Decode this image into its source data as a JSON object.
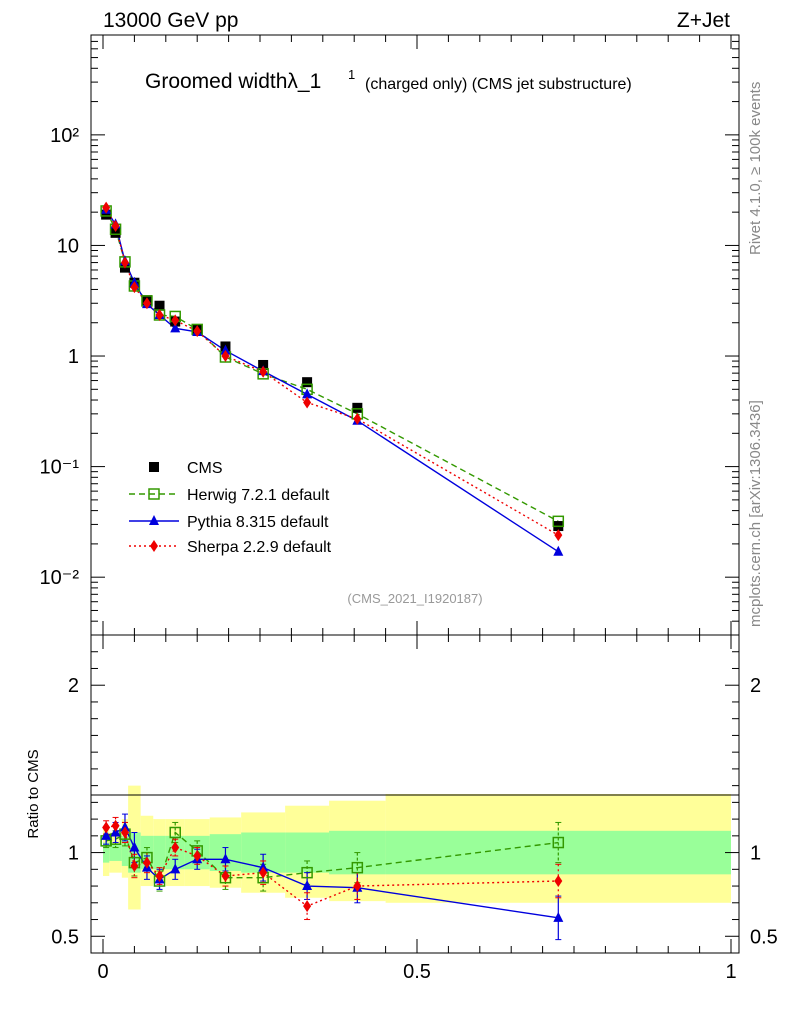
{
  "header": {
    "left": "13000 GeV pp",
    "right": "Z+Jet"
  },
  "side_labels": {
    "rivet": "Rivet 4.1.0, ≥ 100k events",
    "mcplots": "mcplots.cern.ch [arXiv:1306.3436]"
  },
  "colors": {
    "cms": "#000000",
    "herwig": "#339900",
    "pythia": "#0000dd",
    "sherpa": "#ee0000",
    "band_yellow": "#ffff99",
    "band_green": "#99ff99"
  },
  "chart_data": [
    {
      "type": "scatter",
      "title_main": "Groomed widthλ_1",
      "title_sup": "1",
      "title_sub": "(charged only) (CMS jet substructure)",
      "analysis": "(CMS_2021_I1920187)",
      "yscale": "log",
      "xlim": [
        0,
        1
      ],
      "ylim": [
        0.003,
        800
      ],
      "y_tick_labels": [
        "10⁻²",
        "10⁻¹",
        "1",
        "10",
        "10²"
      ],
      "legend_position": "middle-left",
      "x": [
        0.005,
        0.02,
        0.035,
        0.05,
        0.07,
        0.09,
        0.115,
        0.15,
        0.195,
        0.255,
        0.325,
        0.405,
        0.725
      ],
      "series": [
        {
          "name": "CMS",
          "key": "cms",
          "marker": "square",
          "values": [
            19,
            13,
            6.3,
            4.6,
            3.2,
            2.85,
            2.05,
            1.72,
            1.22,
            0.83,
            0.58,
            0.34,
            0.029
          ]
        },
        {
          "name": "Herwig 7.2.1 default",
          "key": "herwig",
          "marker": "open-square",
          "line": "dashed",
          "values": [
            20.5,
            14,
            7.1,
            4.3,
            3.15,
            2.35,
            2.28,
            1.74,
            0.98,
            0.69,
            0.5,
            0.3,
            0.032
          ]
        },
        {
          "name": "Pythia 8.315 default",
          "key": "pythia",
          "marker": "triangle",
          "line": "solid",
          "values": [
            21,
            15.5,
            7.2,
            4.6,
            2.95,
            2.35,
            1.78,
            1.65,
            1.12,
            0.73,
            0.45,
            0.26,
            0.017
          ]
        },
        {
          "name": "Sherpa 2.2.9 default",
          "key": "sherpa",
          "marker": "diamond",
          "line": "dotted",
          "values": [
            22,
            15,
            7.0,
            4.2,
            3.0,
            2.35,
            2.1,
            1.68,
            1.0,
            0.72,
            0.38,
            0.27,
            0.024
          ]
        }
      ]
    },
    {
      "type": "line",
      "ylabel": "Ratio to CMS",
      "xlim": [
        0,
        1
      ],
      "ylim": [
        0.4,
        2.3
      ],
      "x_tick_labels": [
        "0",
        "0.5",
        "1"
      ],
      "y_tick_labels": [
        "0.5",
        "1",
        "2"
      ],
      "bins": [
        0,
        0.01,
        0.03,
        0.04,
        0.06,
        0.08,
        0.1,
        0.13,
        0.17,
        0.22,
        0.29,
        0.36,
        0.45,
        1.0
      ],
      "band_outer_low": [
        0.86,
        0.88,
        0.85,
        0.66,
        0.8,
        0.82,
        0.8,
        0.8,
        0.79,
        0.76,
        0.73,
        0.71,
        0.7
      ],
      "band_outer_high": [
        1.14,
        1.12,
        1.2,
        1.4,
        1.22,
        1.2,
        1.2,
        1.2,
        1.21,
        1.24,
        1.28,
        1.31,
        1.35
      ],
      "band_inner_low": [
        0.94,
        0.95,
        0.92,
        0.88,
        0.9,
        0.9,
        0.9,
        0.9,
        0.89,
        0.88,
        0.88,
        0.87,
        0.87
      ],
      "band_inner_high": [
        1.06,
        1.05,
        1.1,
        1.12,
        1.1,
        1.1,
        1.1,
        1.1,
        1.11,
        1.12,
        1.12,
        1.13,
        1.13
      ],
      "x": [
        0.005,
        0.02,
        0.035,
        0.05,
        0.07,
        0.09,
        0.115,
        0.15,
        0.195,
        0.255,
        0.325,
        0.405,
        0.725
      ],
      "series": [
        {
          "name": "Herwig 7.2.1 default",
          "key": "herwig",
          "marker": "open-square",
          "line": "dashed",
          "values": [
            1.07,
            1.08,
            1.11,
            0.94,
            0.97,
            0.83,
            1.12,
            1.01,
            0.85,
            0.85,
            0.88,
            0.91,
            1.06
          ],
          "err": [
            0.04,
            0.05,
            0.07,
            0.08,
            0.06,
            0.06,
            0.06,
            0.06,
            0.07,
            0.08,
            0.07,
            0.09,
            0.12
          ]
        },
        {
          "name": "Pythia 8.315 default",
          "key": "pythia",
          "marker": "triangle",
          "line": "solid",
          "values": [
            1.1,
            1.12,
            1.15,
            1.03,
            0.91,
            0.84,
            0.9,
            0.96,
            0.96,
            0.91,
            0.8,
            0.79,
            0.61
          ],
          "err": [
            0.05,
            0.06,
            0.08,
            0.09,
            0.07,
            0.06,
            0.06,
            0.06,
            0.07,
            0.08,
            0.08,
            0.09,
            0.13
          ]
        },
        {
          "name": "Sherpa 2.2.9 default",
          "key": "sherpa",
          "marker": "diamond",
          "line": "dotted",
          "values": [
            1.15,
            1.16,
            1.12,
            0.92,
            0.94,
            0.86,
            1.03,
            0.98,
            0.86,
            0.88,
            0.68,
            0.8,
            0.83
          ],
          "err": [
            0.04,
            0.05,
            0.06,
            0.07,
            0.06,
            0.05,
            0.05,
            0.05,
            0.06,
            0.07,
            0.08,
            0.08,
            0.1
          ]
        }
      ]
    }
  ]
}
